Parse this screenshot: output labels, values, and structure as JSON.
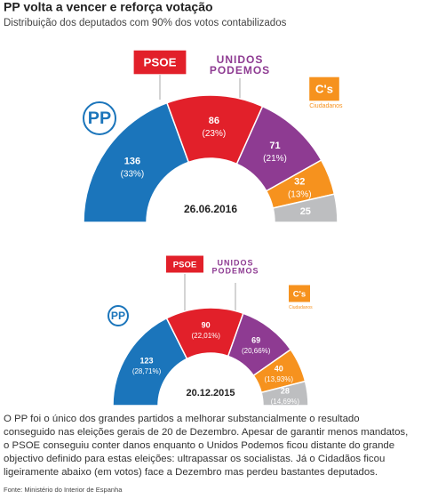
{
  "title": "PP volta a vencer e reforça votação",
  "subtitle": "Distribuição dos deputados com 90% dos votos contabilizados",
  "body": "O PP foi o único dos grandes partidos a melhorar substancialmente o resultado conseguido nas eleições gerais de 20 de Dezembro. Apesar de garantir menos mandatos, o PSOE conseguiu conter danos enquanto o Unidos Podemos ficou distante do grande objectivo definido para estas eleições: ultrapassar os socialistas. Já o Cidadãos ficou ligeiramente abaixo (em votos) face a Dezembro mas perdeu bastantes deputados.",
  "source": "Fonte: Ministério do Interior de Espanha",
  "chart_data": [
    {
      "type": "half-donut",
      "center_label": "26.06.2016",
      "values": [
        136,
        86,
        71,
        32,
        25
      ],
      "share_labels": [
        "(33%)",
        "(23%)",
        "(21%)",
        "(13%)",
        null
      ],
      "colors": [
        "#1b75bb",
        "#e2202a",
        "#8e3b92",
        "#f6921e",
        "#bdbec0"
      ],
      "logos": [
        {
          "lines": [
            "PP"
          ],
          "style": "circle"
        },
        {
          "lines": [
            "PSOE"
          ],
          "style": "box"
        },
        {
          "lines": [
            "UNIDOS",
            "PODEMOS"
          ],
          "style": "text"
        },
        {
          "lines": [
            "C's",
            "Ciudadanos"
          ],
          "style": "box"
        },
        null
      ]
    },
    {
      "type": "half-donut",
      "center_label": "20.12.2015",
      "values": [
        123,
        90,
        69,
        40,
        28
      ],
      "share_labels": [
        "(28,71%)",
        "(22,01%)",
        "(20,66%)",
        "(13,93%)",
        "(14,69%)"
      ],
      "colors": [
        "#1b75bb",
        "#e2202a",
        "#8e3b92",
        "#f6921e",
        "#bdbec0"
      ],
      "logos": [
        {
          "lines": [
            "PP"
          ],
          "style": "circle"
        },
        {
          "lines": [
            "PSOE"
          ],
          "style": "box"
        },
        {
          "lines": [
            "UNIDOS",
            "PODEMOS"
          ],
          "style": "text"
        },
        {
          "lines": [
            "C's",
            "Ciudadanos"
          ],
          "style": "box"
        },
        null
      ]
    }
  ]
}
